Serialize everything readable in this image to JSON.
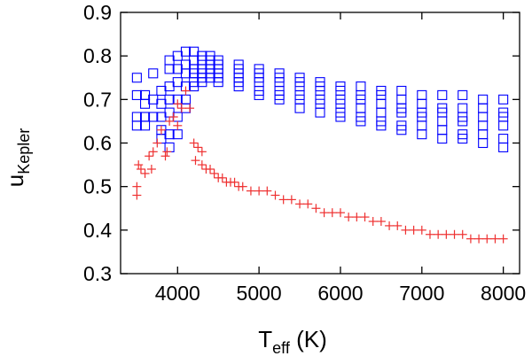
{
  "chart_data": {
    "type": "scatter",
    "title": "",
    "xlabel": {
      "main": "T",
      "sub": "eff",
      "unit": " (K)"
    },
    "ylabel": {
      "main": "u",
      "sub": "Kepler"
    },
    "xlim": [
      3300,
      8200
    ],
    "ylim": [
      0.3,
      0.9
    ],
    "xticks": [
      4000,
      5000,
      6000,
      7000,
      8000
    ],
    "yticks": [
      0.3,
      0.4,
      0.5,
      0.6,
      0.7,
      0.8,
      0.9
    ],
    "xtick_labels": [
      "4000",
      "5000",
      "6000",
      "7000",
      "8000"
    ],
    "ytick_labels": [
      "0.3",
      "0.4",
      "0.5",
      "0.6",
      "0.7",
      "0.8",
      "0.9"
    ],
    "grid": false,
    "legend": "none",
    "series": [
      {
        "marker": "square",
        "color": "#0000ff",
        "x": [
          3500,
          3500,
          3500,
          3500,
          3600,
          3600,
          3600,
          3600,
          3700,
          3700,
          3700,
          3800,
          3800,
          3800,
          3800,
          3800,
          3900,
          3900,
          3900,
          3900,
          3900,
          3900,
          3900,
          4000,
          4000,
          4000,
          4000,
          4000,
          4000,
          4100,
          4100,
          4100,
          4100,
          4100,
          4100,
          4200,
          4200,
          4200,
          4200,
          4200,
          4200,
          4300,
          4300,
          4300,
          4300,
          4300,
          4300,
          4400,
          4400,
          4400,
          4400,
          4400,
          4400,
          4500,
          4500,
          4500,
          4500,
          4500,
          4500,
          4750,
          4750,
          4750,
          4750,
          4750,
          4750,
          5000,
          5000,
          5000,
          5000,
          5000,
          5000,
          5250,
          5250,
          5250,
          5250,
          5250,
          5250,
          5500,
          5500,
          5500,
          5500,
          5500,
          5500,
          5750,
          5750,
          5750,
          5750,
          5750,
          5750,
          6000,
          6000,
          6000,
          6000,
          6000,
          6000,
          6250,
          6250,
          6250,
          6250,
          6250,
          6250,
          6500,
          6500,
          6500,
          6500,
          6500,
          6500,
          6750,
          6750,
          6750,
          6750,
          6750,
          6750,
          7000,
          7000,
          7000,
          7000,
          7000,
          7000,
          7250,
          7250,
          7250,
          7250,
          7250,
          7250,
          7500,
          7500,
          7500,
          7500,
          7500,
          7500,
          7750,
          7750,
          7750,
          7750,
          7750,
          7750,
          8000,
          8000,
          8000,
          8000,
          8000,
          8000
        ],
        "y": [
          0.75,
          0.71,
          0.66,
          0.64,
          0.71,
          0.69,
          0.66,
          0.64,
          0.76,
          0.7,
          0.66,
          0.72,
          0.69,
          0.66,
          0.63,
          0.61,
          0.79,
          0.77,
          0.73,
          0.7,
          0.67,
          0.62,
          0.59,
          0.8,
          0.77,
          0.74,
          0.7,
          0.66,
          0.62,
          0.81,
          0.78,
          0.76,
          0.73,
          0.7,
          0.68,
          0.81,
          0.79,
          0.77,
          0.76,
          0.74,
          0.73,
          0.8,
          0.79,
          0.77,
          0.76,
          0.75,
          0.74,
          0.8,
          0.79,
          0.78,
          0.77,
          0.76,
          0.75,
          0.79,
          0.78,
          0.77,
          0.76,
          0.75,
          0.74,
          0.78,
          0.77,
          0.76,
          0.75,
          0.74,
          0.73,
          0.77,
          0.76,
          0.75,
          0.74,
          0.72,
          0.71,
          0.76,
          0.75,
          0.74,
          0.72,
          0.71,
          0.7,
          0.75,
          0.74,
          0.73,
          0.71,
          0.7,
          0.68,
          0.74,
          0.73,
          0.72,
          0.7,
          0.69,
          0.67,
          0.73,
          0.72,
          0.7,
          0.69,
          0.67,
          0.66,
          0.73,
          0.71,
          0.7,
          0.68,
          0.66,
          0.65,
          0.72,
          0.71,
          0.69,
          0.67,
          0.65,
          0.64,
          0.72,
          0.7,
          0.68,
          0.67,
          0.64,
          0.63,
          0.71,
          0.69,
          0.67,
          0.66,
          0.64,
          0.62,
          0.71,
          0.68,
          0.67,
          0.65,
          0.63,
          0.61,
          0.71,
          0.68,
          0.66,
          0.65,
          0.62,
          0.61,
          0.7,
          0.68,
          0.66,
          0.64,
          0.62,
          0.6,
          0.7,
          0.67,
          0.66,
          0.64,
          0.61,
          0.59
        ]
      },
      {
        "marker": "plus",
        "color": "#ee3030",
        "x": [
          3500,
          3500,
          3520,
          3550,
          3600,
          3650,
          3680,
          3700,
          3750,
          3800,
          3850,
          3870,
          3900,
          3950,
          4000,
          4000,
          4050,
          4100,
          4150,
          4200,
          4220,
          4250,
          4300,
          4300,
          4350,
          4400,
          4450,
          4500,
          4550,
          4600,
          4650,
          4700,
          4750,
          4800,
          4900,
          5000,
          5100,
          5200,
          5300,
          5400,
          5500,
          5600,
          5700,
          5800,
          5900,
          6000,
          6100,
          6200,
          6300,
          6400,
          6500,
          6600,
          6700,
          6800,
          6900,
          7000,
          7100,
          7200,
          7300,
          7400,
          7500,
          7600,
          7700,
          7800,
          7900,
          8000
        ],
        "y": [
          0.48,
          0.5,
          0.55,
          0.54,
          0.53,
          0.57,
          0.54,
          0.58,
          0.6,
          0.63,
          0.57,
          0.58,
          0.65,
          0.66,
          0.69,
          0.64,
          0.68,
          0.72,
          0.68,
          0.6,
          0.56,
          0.59,
          0.55,
          0.58,
          0.54,
          0.54,
          0.53,
          0.52,
          0.52,
          0.51,
          0.51,
          0.51,
          0.5,
          0.5,
          0.49,
          0.49,
          0.49,
          0.48,
          0.47,
          0.47,
          0.46,
          0.46,
          0.45,
          0.44,
          0.44,
          0.44,
          0.43,
          0.43,
          0.43,
          0.42,
          0.42,
          0.41,
          0.41,
          0.4,
          0.4,
          0.4,
          0.39,
          0.39,
          0.39,
          0.39,
          0.39,
          0.38,
          0.38,
          0.38,
          0.38,
          0.38
        ]
      }
    ]
  }
}
